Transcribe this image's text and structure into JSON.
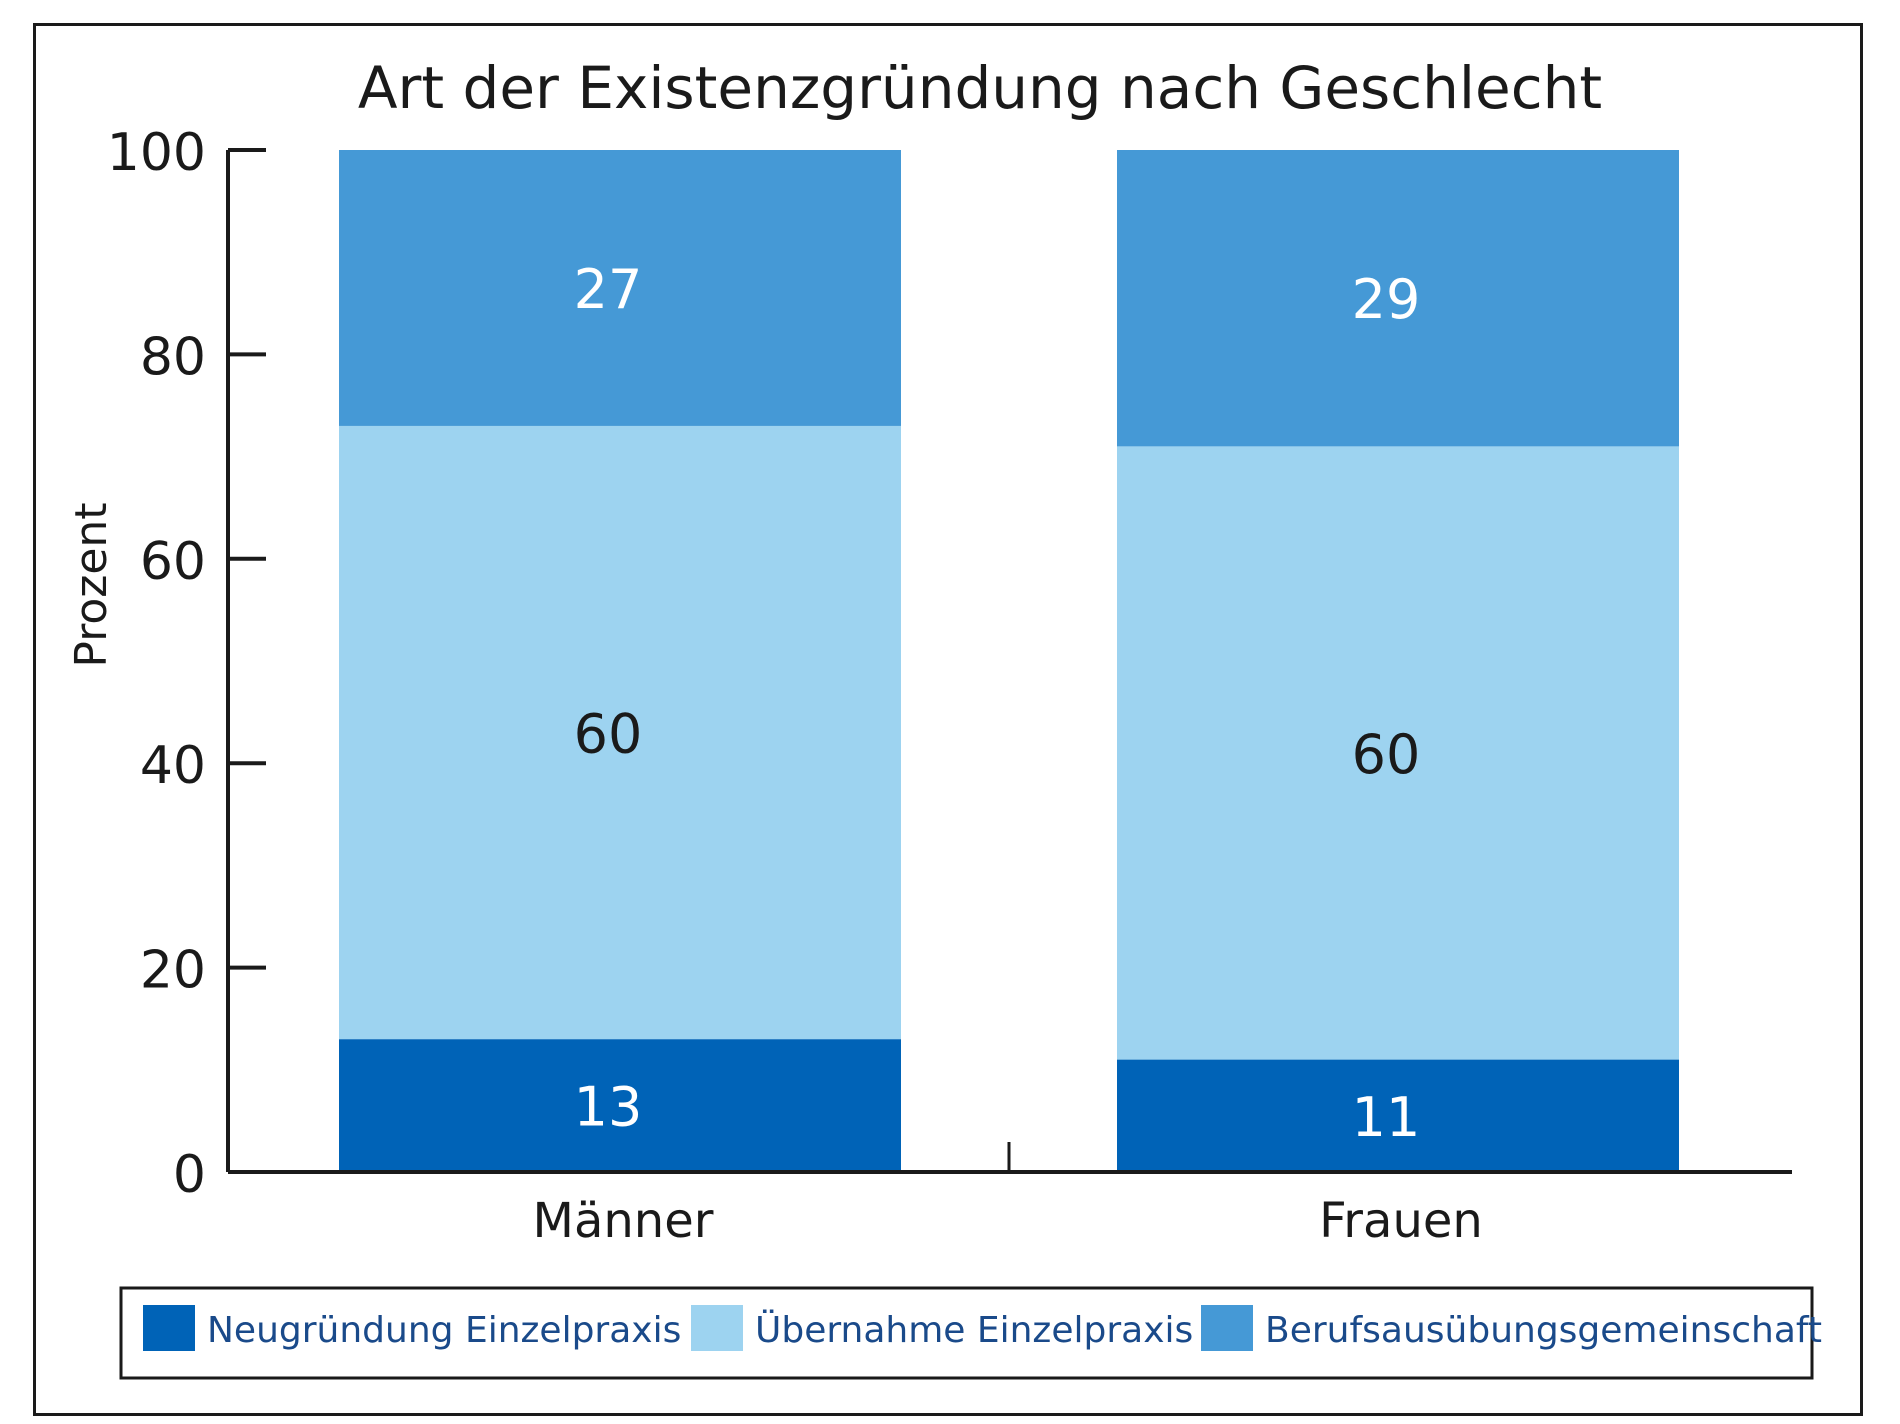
{
  "chart_data": {
    "type": "bar",
    "stacked": true,
    "title": "Art der Existenzgründung nach Geschlecht",
    "ylabel": "Prozent",
    "xlabel": "",
    "ylim": [
      0,
      100
    ],
    "yticks": [
      0,
      20,
      40,
      60,
      80,
      100
    ],
    "categories": [
      "Männer",
      "Frauen"
    ],
    "series": [
      {
        "name": "Neugründung Einzelpraxis",
        "values": [
          13,
          11
        ],
        "color": "#0063b7",
        "label_color": "#ffffff"
      },
      {
        "name": "Übernahme Einzelpraxis",
        "values": [
          60,
          60
        ],
        "color": "#9dd3f0",
        "label_color": "#1a1a1a"
      },
      {
        "name": "Berufsausübungsgemeinschaft",
        "values": [
          27,
          29
        ],
        "color": "#4599d6",
        "label_color": "#ffffff"
      }
    ],
    "legend_position": "bottom",
    "grid": false
  }
}
